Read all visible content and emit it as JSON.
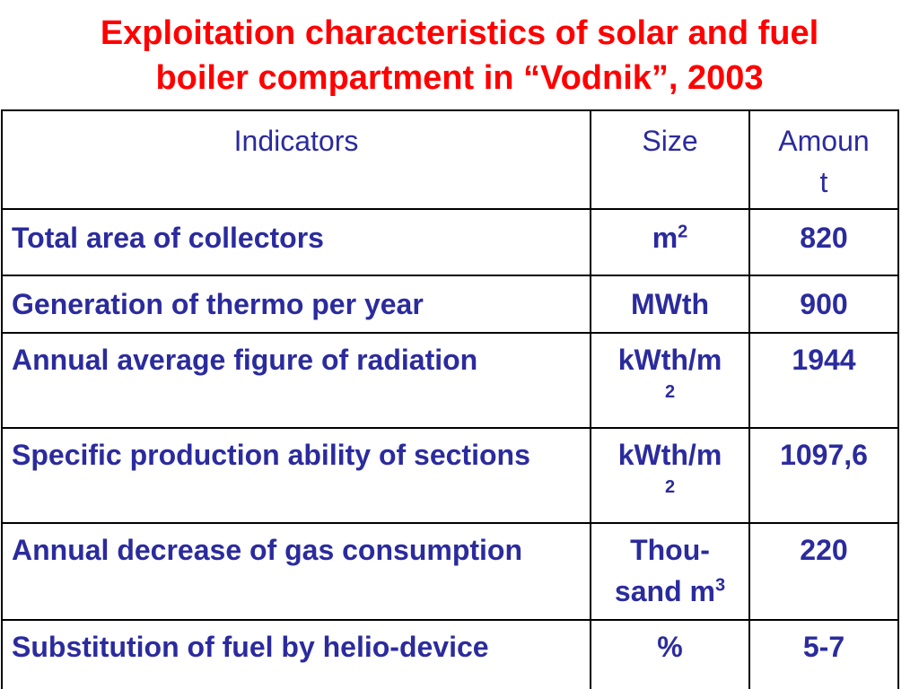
{
  "title": {
    "line1": "Exploitation characteristics of solar and fuel",
    "line2": "boiler compartment in “Vodnik”, 2003"
  },
  "table": {
    "headers": {
      "indicators": "Indicators",
      "size": "Size",
      "amount_line1": "Amoun",
      "amount_line2": "t"
    },
    "rows": [
      {
        "indicator": "Total area of collectors",
        "size_base": "m",
        "size_sup": "2",
        "amount": "820"
      },
      {
        "indicator": "Generation of thermo per year",
        "size": "MWth",
        "amount": "900"
      },
      {
        "indicator": "Annual average figure of radiation",
        "size_base": "kWth/m",
        "size_sup": "2",
        "amount": "1944"
      },
      {
        "indicator": "Specific production ability of sections",
        "size_base": "kWth/m",
        "size_sup": "2",
        "amount": "1097,6"
      },
      {
        "indicator": "Annual decrease of gas consumption",
        "size_line1": "Thou-",
        "size_base": "sand m",
        "size_sup": "3",
        "amount": "220"
      },
      {
        "indicator": "Substitution of fuel by helio-device",
        "size": "%",
        "amount": "5-7"
      }
    ]
  }
}
